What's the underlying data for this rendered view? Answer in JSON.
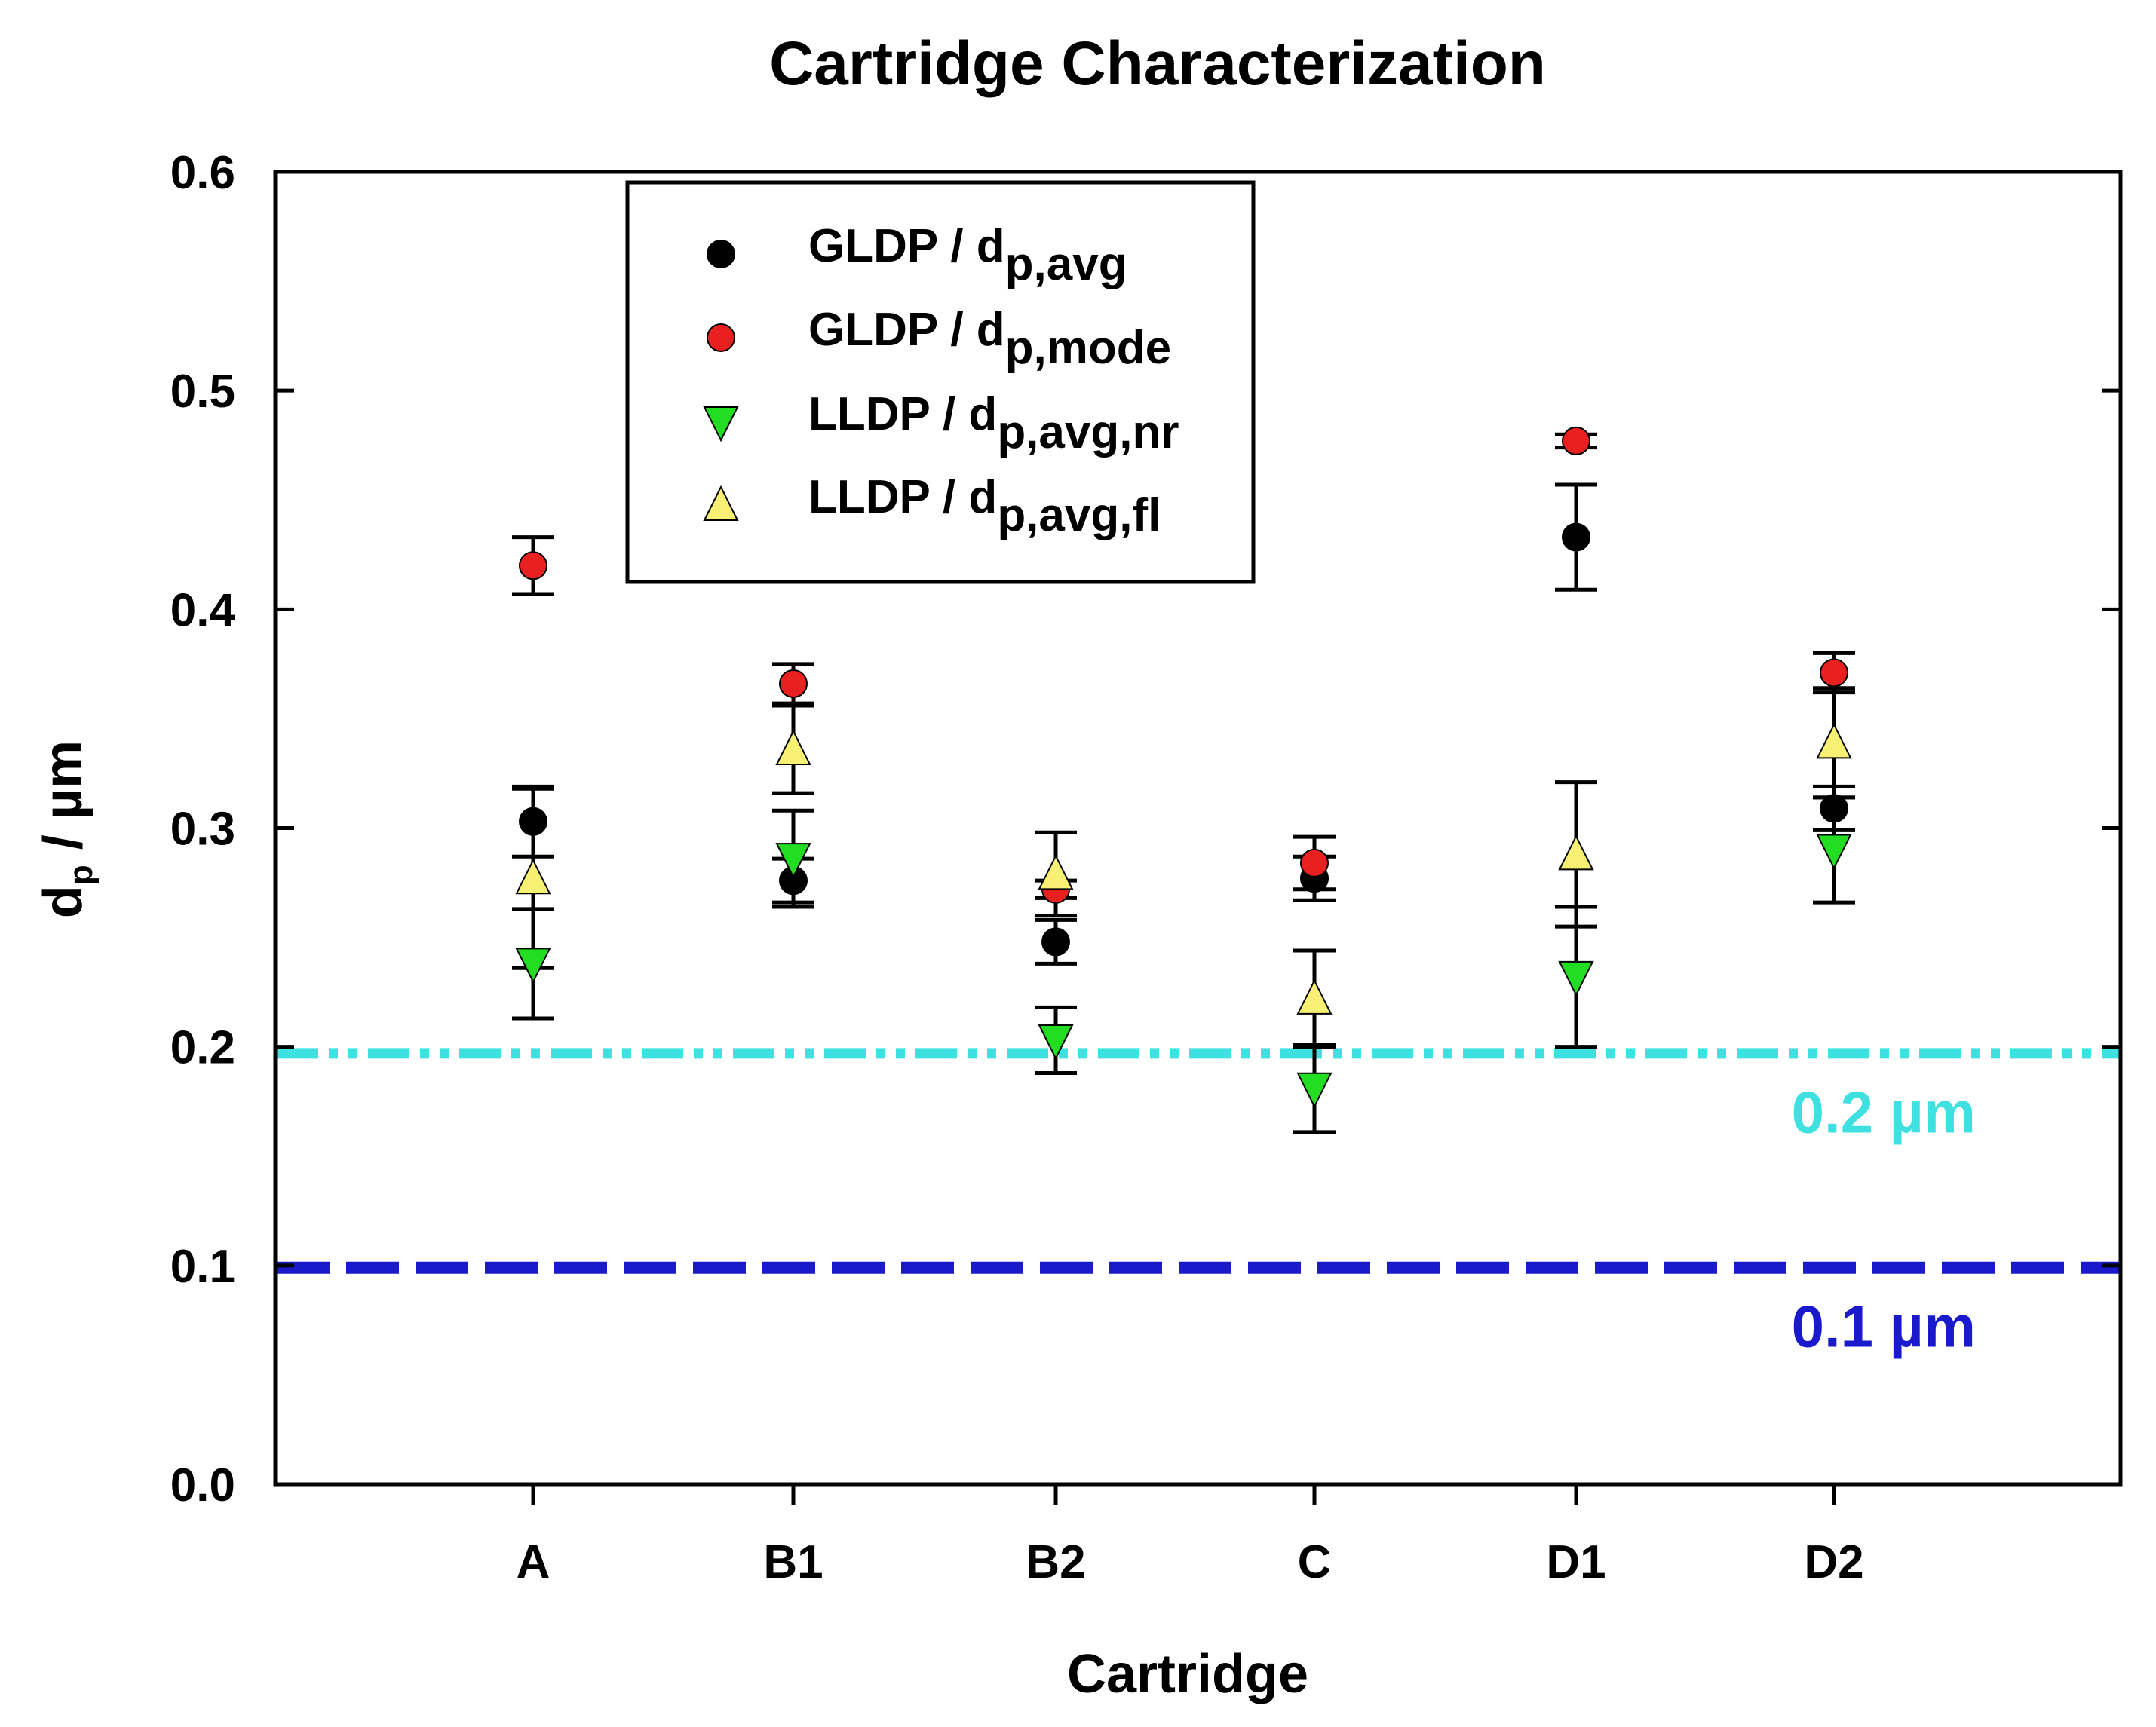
{
  "chart_data": {
    "type": "scatter",
    "title": "Cartridge Characterization",
    "xlabel": "Cartridge",
    "ylabel": {
      "main": "d",
      "sub": "p",
      "rest": " / µm"
    },
    "categories": [
      "A",
      "B1",
      "B2",
      "C",
      "D1",
      "D2"
    ],
    "ylim": [
      0,
      0.6
    ],
    "yticks": [
      "0.0",
      "0.1",
      "0.2",
      "0.3",
      "0.4",
      "0.5",
      "0.6"
    ],
    "grid": false,
    "legend_position": "top-left",
    "series": [
      {
        "name": "GLDP / d",
        "name_sub": "p,avg",
        "marker": "circle",
        "color": "#000000",
        "values": [
          0.303,
          0.276,
          0.248,
          0.277,
          0.433,
          0.309
        ],
        "errors": [
          0.016,
          0.01,
          0.01,
          0.01,
          0.024,
          0.01
        ]
      },
      {
        "name": "GLDP / d",
        "name_sub": "p,mode",
        "marker": "circle",
        "color": "#e8201f",
        "values": [
          0.42,
          0.366,
          0.272,
          0.284,
          0.477,
          0.371
        ],
        "errors": [
          0.013,
          0.009,
          0.004,
          0.012,
          0.003,
          0.009
        ]
      },
      {
        "name": "LLDP / d",
        "name_sub": "p,avg,nr",
        "marker": "triangle-down",
        "color": "#22dd22",
        "values": [
          0.238,
          0.286,
          0.203,
          0.181,
          0.232,
          0.29
        ],
        "errors": [
          0.025,
          0.022,
          0.015,
          0.02,
          0.032,
          0.024
        ]
      },
      {
        "name": "LLDP / d",
        "name_sub": "p,avg,fl",
        "marker": "triangle-up",
        "color": "#f7f072",
        "values": [
          0.277,
          0.336,
          0.279,
          0.222,
          0.288,
          0.339
        ],
        "errors": [
          0.041,
          0.02,
          0.019,
          0.022,
          0.033,
          0.025
        ]
      }
    ],
    "reference_lines": [
      {
        "value": 0.197,
        "label": "0.2 µm",
        "color": "#3fe0e0",
        "style": "dash-dot-dot"
      },
      {
        "value": 0.099,
        "label": "0.1 µm",
        "color": "#1a1acc",
        "style": "dashed"
      }
    ]
  }
}
